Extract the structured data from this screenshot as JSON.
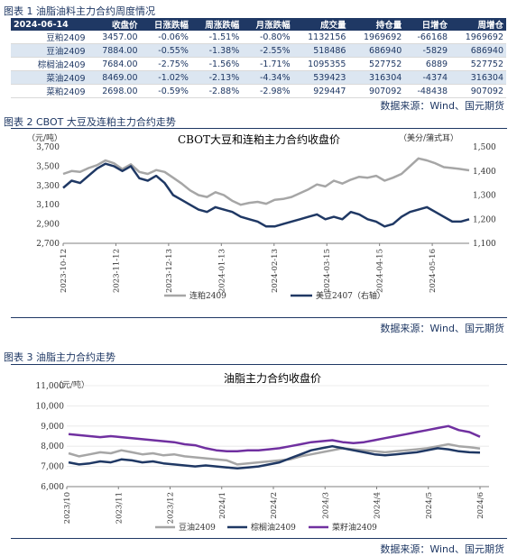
{
  "table1": {
    "caption": "图表 1 油脂油料主力合约周度情况",
    "headers": [
      "2024-06-14",
      "收盘价",
      "日涨跌幅",
      "周涨跌幅",
      "月涨跌幅",
      "成交量",
      "持仓量",
      "日增仓",
      "周增仓"
    ],
    "rows": [
      [
        "豆粕2409",
        "3457.00",
        "-0.06%",
        "-1.51%",
        "-0.80%",
        "1132156",
        "1969692",
        "-66168",
        "1969692"
      ],
      [
        "豆油2409",
        "7884.00",
        "-0.55%",
        "-1.38%",
        "-2.55%",
        "518486",
        "686940",
        "-5829",
        "686940"
      ],
      [
        "棕榈油2409",
        "7684.00",
        "-2.75%",
        "-1.56%",
        "-1.71%",
        "1095355",
        "527752",
        "6889",
        "527752"
      ],
      [
        "菜油2409",
        "8469.00",
        "-1.02%",
        "-2.13%",
        "-4.34%",
        "539423",
        "316304",
        "-4374",
        "316304"
      ],
      [
        "菜粕2409",
        "2698.00",
        "-0.59%",
        "-2.88%",
        "-2.98%",
        "929447",
        "907092",
        "-48438",
        "907092"
      ]
    ],
    "source": "数据来源：Wind、国元期货"
  },
  "chart2_caption": "图表 2 CBOT 大豆及连粕主力合约走势",
  "chart3_caption": "图表 3 油脂主力合约走势",
  "source2": "数据来源：Wind、国元期货",
  "source3": "数据来源：Wind、国元期货",
  "chart_data": [
    {
      "type": "line",
      "title": "CBOT大豆和连粕主力合约收盘价",
      "ylabel_left": "（元/吨）",
      "ylabel_right": "（美分/蒲式耳）",
      "y_ticks_left": [
        "3,700",
        "3,500",
        "3,300",
        "3,100",
        "2,900",
        "2,700"
      ],
      "y_ticks_right": [
        "1,500",
        "1,400",
        "1,300",
        "1,200",
        "1,100"
      ],
      "ylim_left": [
        2700,
        3700
      ],
      "ylim_right": [
        1100,
        1500
      ],
      "x_ticks": [
        "2023-10-12",
        "2023-11-12",
        "2023-12-13",
        "2024-01-13",
        "2024-02-13",
        "2024-03-15",
        "2024-04-15",
        "2024-05-16"
      ],
      "series": [
        {
          "name": "连粕2409",
          "axis": "left",
          "color": "#a6a6a6",
          "values": [
            3420,
            3450,
            3440,
            3480,
            3510,
            3560,
            3530,
            3470,
            3520,
            3440,
            3420,
            3460,
            3440,
            3380,
            3320,
            3250,
            3200,
            3180,
            3230,
            3200,
            3140,
            3100,
            3120,
            3130,
            3110,
            3150,
            3160,
            3180,
            3220,
            3260,
            3310,
            3290,
            3350,
            3320,
            3360,
            3390,
            3380,
            3400,
            3350,
            3380,
            3420,
            3500,
            3580,
            3560,
            3530,
            3490,
            3480,
            3470,
            3457
          ]
        },
        {
          "name": "美豆2407（右轴）",
          "axis": "right",
          "color": "#1f3864",
          "values": [
            1330,
            1360,
            1350,
            1380,
            1410,
            1430,
            1420,
            1400,
            1420,
            1370,
            1360,
            1380,
            1350,
            1300,
            1280,
            1260,
            1240,
            1230,
            1250,
            1240,
            1230,
            1210,
            1200,
            1190,
            1170,
            1170,
            1180,
            1190,
            1200,
            1210,
            1220,
            1200,
            1210,
            1200,
            1230,
            1220,
            1200,
            1190,
            1170,
            1180,
            1210,
            1230,
            1240,
            1250,
            1230,
            1210,
            1190,
            1190,
            1200
          ]
        }
      ]
    },
    {
      "type": "line",
      "title": "油脂主力合约收盘价",
      "ylabel": "（元/吨）",
      "y_ticks": [
        "11,000",
        "10,000",
        "9,000",
        "8,000",
        "7,000",
        "6,000"
      ],
      "ylim": [
        6000,
        11000
      ],
      "x_ticks": [
        "2023/10",
        "2023/11",
        "2023/12",
        "2024/1",
        "2024/2",
        "2024/3",
        "2024/4",
        "2024/5",
        "2024/6"
      ],
      "series": [
        {
          "name": "豆油2409",
          "color": "#a6a6a6",
          "values": [
            7650,
            7500,
            7600,
            7700,
            7650,
            7800,
            7700,
            7600,
            7650,
            7550,
            7600,
            7500,
            7450,
            7400,
            7350,
            7300,
            7100,
            7150,
            7200,
            7250,
            7300,
            7350,
            7500,
            7600,
            7700,
            7800,
            7900,
            7850,
            7800,
            7750,
            7700,
            7750,
            7800,
            7850,
            7900,
            8000,
            8100,
            8000,
            7950,
            7884
          ]
        },
        {
          "name": "棕榈油2409",
          "color": "#1f3864",
          "values": [
            7200,
            7100,
            7150,
            7250,
            7200,
            7350,
            7300,
            7200,
            7250,
            7150,
            7100,
            7050,
            7000,
            7050,
            7000,
            6950,
            6900,
            6950,
            7000,
            7100,
            7200,
            7400,
            7600,
            7800,
            7900,
            8000,
            7900,
            7800,
            7700,
            7600,
            7550,
            7600,
            7650,
            7700,
            7800,
            7900,
            7850,
            7750,
            7700,
            7684
          ]
        },
        {
          "name": "菜籽油2409",
          "color": "#7030a0",
          "values": [
            8600,
            8550,
            8500,
            8450,
            8500,
            8450,
            8400,
            8350,
            8300,
            8250,
            8200,
            8100,
            8050,
            7900,
            7800,
            7750,
            7750,
            7800,
            7800,
            7850,
            7900,
            8000,
            8100,
            8200,
            8250,
            8300,
            8200,
            8150,
            8200,
            8300,
            8400,
            8500,
            8600,
            8700,
            8800,
            8900,
            9000,
            8800,
            8700,
            8469
          ]
        }
      ]
    }
  ]
}
